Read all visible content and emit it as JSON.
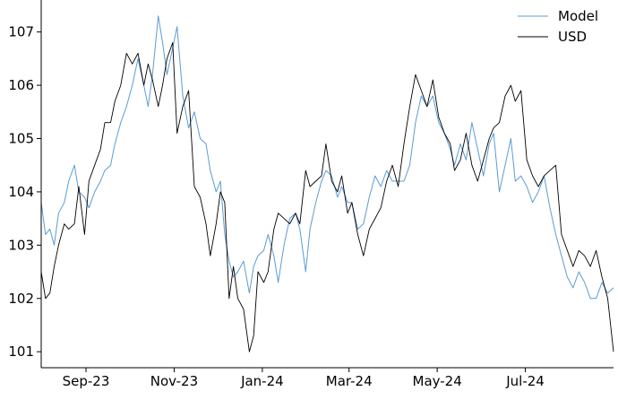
{
  "chart_data": {
    "type": "line",
    "title": "",
    "xlabel": "",
    "ylabel": "",
    "x_ticks": [
      "Sep-23",
      "Nov-23",
      "Jan-24",
      "Mar-24",
      "May-24",
      "Jul-24"
    ],
    "y_ticks": [
      101,
      102,
      103,
      104,
      105,
      106,
      107
    ],
    "ylim": [
      100.7,
      107.6
    ],
    "xlim": [
      "2023-08-01",
      "2024-08-31"
    ],
    "grid": false,
    "legend": "top-right",
    "series": [
      {
        "name": "Model",
        "color": "#5b9bd5",
        "points": [
          [
            "2023-08-01",
            103.8
          ],
          [
            "2023-08-04",
            103.2
          ],
          [
            "2023-08-07",
            103.3
          ],
          [
            "2023-08-10",
            103.0
          ],
          [
            "2023-08-13",
            103.6
          ],
          [
            "2023-08-17",
            103.8
          ],
          [
            "2023-08-20",
            104.2
          ],
          [
            "2023-08-24",
            104.5
          ],
          [
            "2023-08-27",
            104.0
          ],
          [
            "2023-08-31",
            103.9
          ],
          [
            "2023-09-03",
            103.7
          ],
          [
            "2023-09-07",
            104.0
          ],
          [
            "2023-09-11",
            104.2
          ],
          [
            "2023-09-14",
            104.4
          ],
          [
            "2023-09-18",
            104.5
          ],
          [
            "2023-09-21",
            104.9
          ],
          [
            "2023-09-25",
            105.3
          ],
          [
            "2023-09-29",
            105.6
          ],
          [
            "2023-10-03",
            106.0
          ],
          [
            "2023-10-07",
            106.5
          ],
          [
            "2023-10-11",
            106.0
          ],
          [
            "2023-10-14",
            105.6
          ],
          [
            "2023-10-17",
            106.2
          ],
          [
            "2023-10-21",
            107.3
          ],
          [
            "2023-10-24",
            106.8
          ],
          [
            "2023-10-27",
            106.2
          ],
          [
            "2023-10-31",
            106.7
          ],
          [
            "2023-11-03",
            107.1
          ],
          [
            "2023-11-07",
            105.8
          ],
          [
            "2023-11-11",
            105.2
          ],
          [
            "2023-11-15",
            105.5
          ],
          [
            "2023-11-19",
            105.0
          ],
          [
            "2023-11-23",
            104.9
          ],
          [
            "2023-11-26",
            104.4
          ],
          [
            "2023-11-30",
            104.0
          ],
          [
            "2023-12-03",
            104.2
          ],
          [
            "2023-12-06",
            103.2
          ],
          [
            "2023-12-09",
            102.7
          ],
          [
            "2023-12-12",
            102.4
          ],
          [
            "2023-12-15",
            102.5
          ],
          [
            "2023-12-19",
            102.7
          ],
          [
            "2023-12-23",
            102.1
          ],
          [
            "2023-12-26",
            102.6
          ],
          [
            "2023-12-29",
            102.8
          ],
          [
            "2024-01-02",
            102.9
          ],
          [
            "2024-01-05",
            103.2
          ],
          [
            "2024-01-09",
            102.8
          ],
          [
            "2024-01-12",
            102.3
          ],
          [
            "2024-01-16",
            103.0
          ],
          [
            "2024-01-20",
            103.5
          ],
          [
            "2024-01-24",
            103.6
          ],
          [
            "2024-01-27",
            103.3
          ],
          [
            "2024-01-31",
            102.5
          ],
          [
            "2024-02-03",
            103.3
          ],
          [
            "2024-02-07",
            103.8
          ],
          [
            "2024-02-11",
            104.2
          ],
          [
            "2024-02-14",
            104.4
          ],
          [
            "2024-02-18",
            104.3
          ],
          [
            "2024-02-22",
            103.9
          ],
          [
            "2024-02-25",
            104.1
          ],
          [
            "2024-02-29",
            103.8
          ],
          [
            "2024-03-03",
            103.8
          ],
          [
            "2024-03-07",
            103.3
          ],
          [
            "2024-03-11",
            103.4
          ],
          [
            "2024-03-15",
            103.9
          ],
          [
            "2024-03-19",
            104.3
          ],
          [
            "2024-03-23",
            104.1
          ],
          [
            "2024-03-27",
            104.4
          ],
          [
            "2024-03-31",
            104.2
          ],
          [
            "2024-04-04",
            104.2
          ],
          [
            "2024-04-08",
            104.2
          ],
          [
            "2024-04-12",
            104.5
          ],
          [
            "2024-04-16",
            105.3
          ],
          [
            "2024-04-20",
            105.8
          ],
          [
            "2024-04-24",
            105.6
          ],
          [
            "2024-04-28",
            105.8
          ],
          [
            "2024-05-02",
            105.3
          ],
          [
            "2024-05-06",
            105.1
          ],
          [
            "2024-05-10",
            104.8
          ],
          [
            "2024-05-13",
            104.5
          ],
          [
            "2024-05-17",
            104.9
          ],
          [
            "2024-05-21",
            104.6
          ],
          [
            "2024-05-25",
            105.3
          ],
          [
            "2024-05-29",
            104.8
          ],
          [
            "2024-06-02",
            104.3
          ],
          [
            "2024-06-06",
            104.9
          ],
          [
            "2024-06-09",
            105.1
          ],
          [
            "2024-06-13",
            104.0
          ],
          [
            "2024-06-17",
            104.5
          ],
          [
            "2024-06-21",
            105.0
          ],
          [
            "2024-06-24",
            104.2
          ],
          [
            "2024-06-28",
            104.3
          ],
          [
            "2024-07-02",
            104.1
          ],
          [
            "2024-07-06",
            103.8
          ],
          [
            "2024-07-10",
            104.0
          ],
          [
            "2024-07-14",
            104.3
          ],
          [
            "2024-07-18",
            103.7
          ],
          [
            "2024-07-22",
            103.2
          ],
          [
            "2024-07-26",
            102.8
          ],
          [
            "2024-07-30",
            102.4
          ],
          [
            "2024-08-03",
            102.2
          ],
          [
            "2024-08-07",
            102.5
          ],
          [
            "2024-08-11",
            102.3
          ],
          [
            "2024-08-15",
            102.0
          ],
          [
            "2024-08-19",
            102.0
          ],
          [
            "2024-08-23",
            102.3
          ],
          [
            "2024-08-27",
            102.1
          ],
          [
            "2024-08-31",
            102.2
          ]
        ]
      },
      {
        "name": "USD",
        "color": "#000000",
        "points": [
          [
            "2023-08-01",
            102.5
          ],
          [
            "2023-08-04",
            102.0
          ],
          [
            "2023-08-07",
            102.1
          ],
          [
            "2023-08-10",
            102.6
          ],
          [
            "2023-08-13",
            103.0
          ],
          [
            "2023-08-17",
            103.4
          ],
          [
            "2023-08-20",
            103.3
          ],
          [
            "2023-08-24",
            103.4
          ],
          [
            "2023-08-27",
            104.1
          ],
          [
            "2023-08-31",
            103.2
          ],
          [
            "2023-09-03",
            104.2
          ],
          [
            "2023-09-07",
            104.5
          ],
          [
            "2023-09-11",
            104.8
          ],
          [
            "2023-09-14",
            105.3
          ],
          [
            "2023-09-18",
            105.3
          ],
          [
            "2023-09-21",
            105.7
          ],
          [
            "2023-09-25",
            106.0
          ],
          [
            "2023-09-29",
            106.6
          ],
          [
            "2023-10-03",
            106.4
          ],
          [
            "2023-10-07",
            106.6
          ],
          [
            "2023-10-11",
            106.0
          ],
          [
            "2023-10-14",
            106.4
          ],
          [
            "2023-10-17",
            106.1
          ],
          [
            "2023-10-21",
            105.6
          ],
          [
            "2023-10-24",
            106.0
          ],
          [
            "2023-10-27",
            106.5
          ],
          [
            "2023-10-31",
            106.8
          ],
          [
            "2023-11-03",
            105.1
          ],
          [
            "2023-11-07",
            105.6
          ],
          [
            "2023-11-11",
            105.9
          ],
          [
            "2023-11-15",
            104.1
          ],
          [
            "2023-11-19",
            103.9
          ],
          [
            "2023-11-23",
            103.4
          ],
          [
            "2023-11-26",
            102.8
          ],
          [
            "2023-11-30",
            103.4
          ],
          [
            "2023-12-03",
            104.0
          ],
          [
            "2023-12-06",
            103.8
          ],
          [
            "2023-12-09",
            102.0
          ],
          [
            "2023-12-12",
            102.6
          ],
          [
            "2023-12-15",
            102.0
          ],
          [
            "2023-12-19",
            101.8
          ],
          [
            "2023-12-23",
            101.0
          ],
          [
            "2023-12-26",
            101.3
          ],
          [
            "2023-12-29",
            102.5
          ],
          [
            "2024-01-02",
            102.3
          ],
          [
            "2024-01-05",
            102.5
          ],
          [
            "2024-01-09",
            103.3
          ],
          [
            "2024-01-12",
            103.6
          ],
          [
            "2024-01-16",
            103.5
          ],
          [
            "2024-01-20",
            103.4
          ],
          [
            "2024-01-24",
            103.6
          ],
          [
            "2024-01-27",
            103.4
          ],
          [
            "2024-01-31",
            104.4
          ],
          [
            "2024-02-03",
            104.1
          ],
          [
            "2024-02-07",
            104.2
          ],
          [
            "2024-02-11",
            104.3
          ],
          [
            "2024-02-14",
            104.9
          ],
          [
            "2024-02-18",
            104.2
          ],
          [
            "2024-02-22",
            104.0
          ],
          [
            "2024-02-25",
            104.3
          ],
          [
            "2024-02-29",
            103.6
          ],
          [
            "2024-03-03",
            103.8
          ],
          [
            "2024-03-07",
            103.2
          ],
          [
            "2024-03-11",
            102.8
          ],
          [
            "2024-03-15",
            103.3
          ],
          [
            "2024-03-19",
            103.5
          ],
          [
            "2024-03-23",
            103.7
          ],
          [
            "2024-03-27",
            104.2
          ],
          [
            "2024-03-31",
            104.5
          ],
          [
            "2024-04-04",
            104.1
          ],
          [
            "2024-04-08",
            104.9
          ],
          [
            "2024-04-12",
            105.6
          ],
          [
            "2024-04-16",
            106.2
          ],
          [
            "2024-04-20",
            105.9
          ],
          [
            "2024-04-24",
            105.6
          ],
          [
            "2024-04-28",
            106.1
          ],
          [
            "2024-05-02",
            105.4
          ],
          [
            "2024-05-06",
            105.1
          ],
          [
            "2024-05-10",
            104.9
          ],
          [
            "2024-05-13",
            104.4
          ],
          [
            "2024-05-17",
            104.6
          ],
          [
            "2024-05-21",
            105.1
          ],
          [
            "2024-05-25",
            104.5
          ],
          [
            "2024-05-29",
            104.2
          ],
          [
            "2024-06-02",
            104.6
          ],
          [
            "2024-06-06",
            105.0
          ],
          [
            "2024-06-09",
            105.2
          ],
          [
            "2024-06-13",
            105.3
          ],
          [
            "2024-06-17",
            105.8
          ],
          [
            "2024-06-21",
            106.0
          ],
          [
            "2024-06-24",
            105.7
          ],
          [
            "2024-06-28",
            105.9
          ],
          [
            "2024-07-02",
            104.6
          ],
          [
            "2024-07-06",
            104.3
          ],
          [
            "2024-07-10",
            104.1
          ],
          [
            "2024-07-14",
            104.3
          ],
          [
            "2024-07-18",
            104.4
          ],
          [
            "2024-07-22",
            104.5
          ],
          [
            "2024-07-26",
            103.2
          ],
          [
            "2024-07-30",
            102.9
          ],
          [
            "2024-08-03",
            102.6
          ],
          [
            "2024-08-07",
            102.9
          ],
          [
            "2024-08-11",
            102.8
          ],
          [
            "2024-08-15",
            102.6
          ],
          [
            "2024-08-19",
            102.9
          ],
          [
            "2024-08-23",
            102.4
          ],
          [
            "2024-08-27",
            102.0
          ],
          [
            "2024-08-31",
            101.0
          ]
        ]
      }
    ]
  }
}
